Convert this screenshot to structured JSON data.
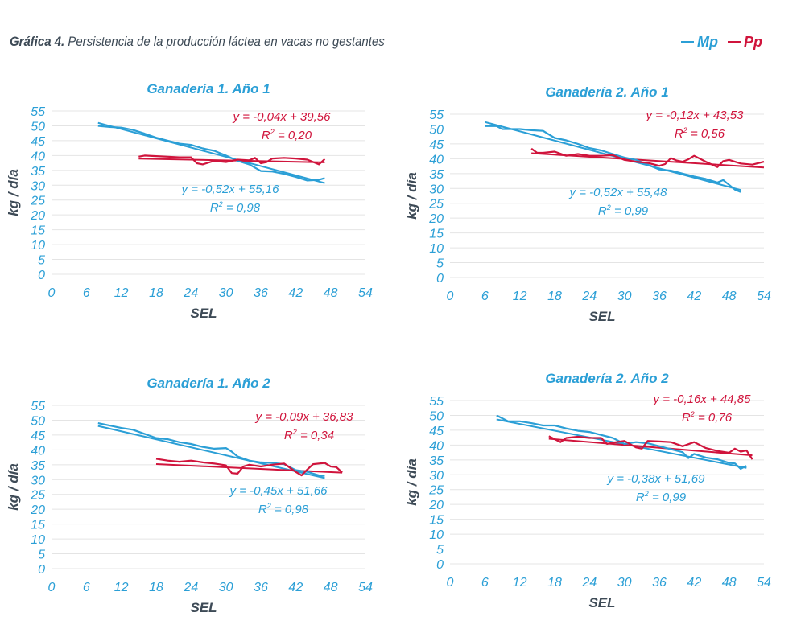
{
  "figure": {
    "title_lead": "Gráfica 4.",
    "title_rest": " Persistencia de la producción láctea en vacas no gestantes"
  },
  "legend": {
    "mp_label": "Mp",
    "pp_label": "Pp"
  },
  "colors": {
    "mp": "#2b9fd6",
    "pp": "#d0143c",
    "grid": "#e4e4e4",
    "axis_text": "#2b9fd6"
  },
  "chart_data": [
    {
      "type": "line",
      "title": "Ganadería 1. Año 1",
      "xlabel": "SEL",
      "ylabel": "kg / día",
      "xlim": [
        0,
        54
      ],
      "ylim": [
        0,
        55
      ],
      "xticks": [
        0,
        6,
        12,
        18,
        24,
        30,
        36,
        42,
        48,
        54
      ],
      "yticks": [
        0,
        5,
        10,
        15,
        20,
        25,
        30,
        35,
        40,
        45,
        50,
        55
      ],
      "grid": "horizontal",
      "series": [
        {
          "name": "Mp",
          "x": [
            8,
            10,
            12,
            14,
            16,
            18,
            20,
            22,
            24,
            26,
            28,
            30,
            32,
            34,
            36,
            38,
            40,
            42,
            44,
            46,
            47
          ],
          "y": [
            50,
            49.6,
            49.4,
            48.6,
            47.4,
            46,
            45,
            44,
            43.6,
            42.4,
            41.6,
            40,
            38.2,
            37,
            34.8,
            34.6,
            33.8,
            32.8,
            31.6,
            31.8,
            32.4
          ]
        },
        {
          "name": "Pp",
          "x": [
            15,
            16,
            18,
            20,
            22,
            24,
            25,
            26,
            28,
            30,
            32,
            34,
            35,
            36,
            37,
            38,
            40,
            42,
            44,
            46,
            47
          ],
          "y": [
            39.6,
            40,
            39.8,
            39.6,
            39.4,
            39.4,
            37.4,
            37,
            38.2,
            37.8,
            38.6,
            38.4,
            39.2,
            37.4,
            37.8,
            39,
            39.2,
            39,
            38.6,
            37,
            38.8
          ]
        }
      ],
      "trendlines": [
        {
          "series": "Mp",
          "slope": -0.52,
          "intercept": 55.16,
          "x_range": [
            8,
            47
          ]
        },
        {
          "series": "Pp",
          "slope": -0.04,
          "intercept": 39.56,
          "x_range": [
            15,
            47
          ]
        }
      ],
      "annotations": [
        {
          "series": "Pp",
          "equation": "y = -0,04x + 39,56",
          "r2_label": "R",
          "r2_value": " = 0,20"
        },
        {
          "series": "Mp",
          "equation": "y = -0,52x + 55,16",
          "r2_label": "R",
          "r2_value": " = 0,98"
        }
      ]
    },
    {
      "type": "line",
      "title": "Ganadería 2. Año 1",
      "xlabel": "SEL",
      "ylabel": "kg / día",
      "xlim": [
        0,
        54
      ],
      "ylim": [
        0,
        55
      ],
      "xticks": [
        0,
        6,
        12,
        18,
        24,
        30,
        36,
        42,
        48,
        54
      ],
      "yticks": [
        0,
        5,
        10,
        15,
        20,
        25,
        30,
        35,
        40,
        45,
        50,
        55
      ],
      "grid": "horizontal",
      "series": [
        {
          "name": "Mp",
          "x": [
            6,
            8,
            9,
            12,
            14,
            16,
            18,
            20,
            22,
            24,
            26,
            28,
            30,
            32,
            34,
            36,
            38,
            40,
            42,
            44,
            46,
            47,
            48,
            49,
            50
          ],
          "y": [
            51,
            51,
            50,
            50,
            49.6,
            49.4,
            47,
            46.2,
            45,
            43.6,
            42.8,
            41.6,
            40.4,
            39.6,
            38,
            36.4,
            36,
            35,
            34,
            33.2,
            32,
            32.8,
            31.2,
            29.6,
            28.8
          ]
        },
        {
          "name": "Pp",
          "x": [
            14,
            15,
            16,
            18,
            20,
            22,
            24,
            26,
            28,
            30,
            32,
            34,
            36,
            37,
            38,
            39,
            40,
            41,
            42,
            44,
            46,
            47,
            48,
            50,
            52,
            54
          ],
          "y": [
            43.4,
            42,
            42,
            42.4,
            41,
            41.6,
            41,
            41,
            41.2,
            39.6,
            39,
            38.6,
            37.6,
            38.2,
            40.2,
            39.4,
            39,
            39.8,
            41,
            39,
            37.2,
            39.2,
            39.6,
            38.4,
            38,
            39
          ]
        }
      ],
      "trendlines": [
        {
          "series": "Mp",
          "slope": -0.52,
          "intercept": 55.48,
          "x_range": [
            6,
            50
          ]
        },
        {
          "series": "Pp",
          "slope": -0.12,
          "intercept": 43.53,
          "x_range": [
            14,
            54
          ]
        }
      ],
      "annotations": [
        {
          "series": "Pp",
          "equation": "y = -0,12x + 43,53",
          "r2_label": "R",
          "r2_value": " = 0,56"
        },
        {
          "series": "Mp",
          "equation": "y = -0,52x + 55,48",
          "r2_label": "R",
          "r2_value": " = 0,99"
        }
      ]
    },
    {
      "type": "line",
      "title": "Ganadería 1. Año 2",
      "xlabel": "SEL",
      "ylabel": "kg / día",
      "xlim": [
        0,
        54
      ],
      "ylim": [
        0,
        55
      ],
      "xticks": [
        0,
        6,
        12,
        18,
        24,
        30,
        36,
        42,
        48,
        54
      ],
      "yticks": [
        0,
        5,
        10,
        15,
        20,
        25,
        30,
        35,
        40,
        45,
        50,
        55
      ],
      "grid": "horizontal",
      "series": [
        {
          "name": "Mp",
          "x": [
            8,
            10,
            12,
            14,
            16,
            18,
            20,
            22,
            24,
            26,
            28,
            30,
            31,
            32,
            34,
            36,
            38,
            40,
            42,
            44,
            46,
            47
          ],
          "y": [
            49,
            48.2,
            47.4,
            46.8,
            45.4,
            44,
            43.6,
            42.6,
            42,
            41,
            40.4,
            40.6,
            39.4,
            37.8,
            36.4,
            35.8,
            35.6,
            35.2,
            33.2,
            32.6,
            31.4,
            31.2
          ]
        },
        {
          "name": "Pp",
          "x": [
            18,
            20,
            22,
            24,
            26,
            28,
            30,
            31,
            32,
            33,
            34,
            36,
            38,
            40,
            42,
            43,
            44,
            45,
            46,
            47,
            48,
            49,
            50
          ],
          "y": [
            37,
            36.4,
            36,
            36.4,
            35.8,
            35.4,
            34.8,
            32.2,
            32,
            34.4,
            35,
            34.4,
            35,
            35.4,
            32.6,
            31.4,
            33.4,
            35.2,
            35.4,
            35.6,
            34.4,
            34.2,
            32.4
          ]
        }
      ],
      "trendlines": [
        {
          "series": "Mp",
          "slope": -0.45,
          "intercept": 51.66,
          "x_range": [
            8,
            47
          ]
        },
        {
          "series": "Pp",
          "slope": -0.09,
          "intercept": 36.83,
          "x_range": [
            18,
            50
          ]
        }
      ],
      "annotations": [
        {
          "series": "Pp",
          "equation": "y = -0,09x + 36,83",
          "r2_label": "R",
          "r2_value": " = 0,34"
        },
        {
          "series": "Mp",
          "equation": "y = -0,45x + 51,66",
          "r2_label": "R",
          "r2_value": " = 0,98"
        }
      ]
    },
    {
      "type": "line",
      "title": "Ganadería 2. Año 2",
      "xlabel": "SEL",
      "ylabel": "kg / día",
      "xlim": [
        0,
        54
      ],
      "ylim": [
        0,
        55
      ],
      "xticks": [
        0,
        6,
        12,
        18,
        24,
        30,
        36,
        42,
        48,
        54
      ],
      "yticks": [
        0,
        5,
        10,
        15,
        20,
        25,
        30,
        35,
        40,
        45,
        50,
        55
      ],
      "grid": "horizontal",
      "series": [
        {
          "name": "Mp",
          "x": [
            8,
            10,
            12,
            14,
            16,
            18,
            20,
            22,
            24,
            26,
            28,
            30,
            32,
            34,
            36,
            38,
            40,
            41,
            42,
            44,
            46,
            48,
            49,
            50,
            51
          ],
          "y": [
            50,
            48,
            48,
            47.4,
            46.6,
            46.6,
            45.6,
            44.8,
            44.4,
            43.4,
            42.4,
            40.4,
            41,
            40.6,
            39.6,
            38.6,
            37.6,
            35.6,
            37,
            35.8,
            35.2,
            34,
            33.8,
            32,
            33
          ]
        },
        {
          "name": "Pp",
          "x": [
            17,
            18,
            19,
            20,
            22,
            24,
            26,
            27,
            28,
            30,
            32,
            33,
            34,
            36,
            38,
            40,
            42,
            44,
            46,
            48,
            49,
            50,
            51,
            52
          ],
          "y": [
            43,
            42,
            41,
            42.4,
            42.8,
            42.4,
            42.4,
            40.4,
            40.8,
            41.4,
            39.2,
            38.8,
            41.4,
            41.2,
            41,
            39.6,
            41,
            39,
            38,
            37.4,
            38.8,
            37.8,
            38.2,
            35.2
          ]
        }
      ],
      "trendlines": [
        {
          "series": "Mp",
          "slope": -0.38,
          "intercept": 51.69,
          "x_range": [
            8,
            51
          ]
        },
        {
          "series": "Pp",
          "slope": -0.16,
          "intercept": 44.85,
          "x_range": [
            17,
            52
          ]
        }
      ],
      "annotations": [
        {
          "series": "Pp",
          "equation": "y = -0,16x + 44,85",
          "r2_label": "R",
          "r2_value": " = 0,76"
        },
        {
          "series": "Mp",
          "equation": "y = -0,38x + 51,69",
          "r2_label": "R",
          "r2_value": " = 0,99"
        }
      ]
    }
  ]
}
